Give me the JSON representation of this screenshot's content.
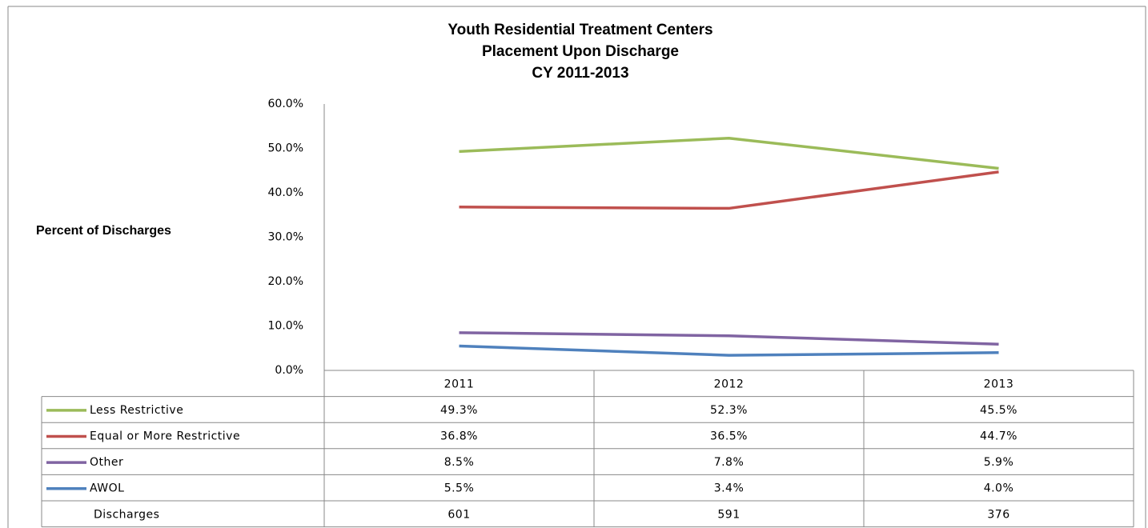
{
  "chart_data": {
    "type": "line",
    "title": [
      "Youth Residential Treatment Centers",
      "Placement Upon Discharge",
      "CY 2011-2013"
    ],
    "y_label": "Percent of Discharges",
    "categories": [
      "2011",
      "2012",
      "2013"
    ],
    "ylim": [
      0,
      60
    ],
    "yticks": [
      {
        "value": 0,
        "label": "0.0%"
      },
      {
        "value": 10,
        "label": "10.0%"
      },
      {
        "value": 20,
        "label": "20.0%"
      },
      {
        "value": 30,
        "label": "30.0%"
      },
      {
        "value": 40,
        "label": "40.0%"
      },
      {
        "value": 50,
        "label": "50.0%"
      },
      {
        "value": 60,
        "label": "60.0%"
      }
    ],
    "series": [
      {
        "name": "Less Restrictive",
        "color": "#9bbb59",
        "values": [
          49.3,
          52.3,
          45.5
        ],
        "value_labels": [
          "49.3%",
          "52.3%",
          "45.5%"
        ]
      },
      {
        "name": "Equal or More  Restrictive",
        "color": "#c0504d",
        "values": [
          36.8,
          36.5,
          44.7
        ],
        "value_labels": [
          "36.8%",
          "36.5%",
          "44.7%"
        ]
      },
      {
        "name": "Other",
        "color": "#8064a2",
        "values": [
          8.5,
          7.8,
          5.9
        ],
        "value_labels": [
          "8.5%",
          "7.8%",
          "5.9%"
        ]
      },
      {
        "name": "AWOL",
        "color": "#4f81bd",
        "values": [
          5.5,
          3.4,
          4.0
        ],
        "value_labels": [
          "5.5%",
          "3.4%",
          "4.0%"
        ]
      }
    ],
    "table_rows": [
      {
        "name": "Discharges",
        "values": [
          601,
          591,
          376
        ]
      }
    ]
  }
}
